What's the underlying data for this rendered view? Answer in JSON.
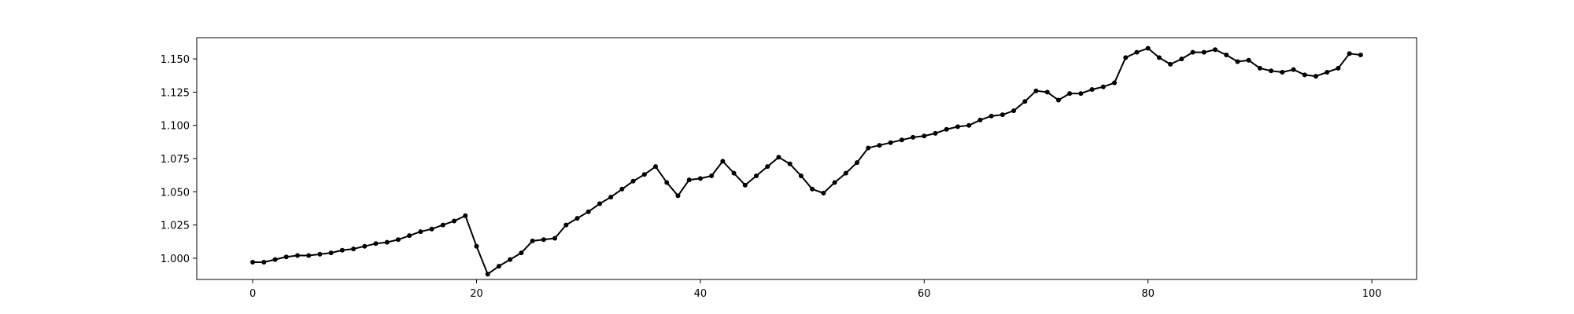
{
  "chart_data": {
    "type": "line",
    "title": "",
    "xlabel": "",
    "ylabel": "",
    "xlim": [
      -5,
      104
    ],
    "ylim": [
      0.984,
      1.166
    ],
    "grid": false,
    "legend": "none",
    "colors": {
      "line": "#000000",
      "marker": "#000000"
    },
    "x_ticks": [
      0,
      20,
      40,
      60,
      80,
      100
    ],
    "x_tick_labels": [
      "0",
      "20",
      "40",
      "60",
      "80",
      "100"
    ],
    "y_ticks": [
      1.0,
      1.025,
      1.05,
      1.075,
      1.1,
      1.125,
      1.15
    ],
    "y_tick_labels": [
      "1.000",
      "1.025",
      "1.050",
      "1.075",
      "1.100",
      "1.125",
      "1.150"
    ],
    "series": [
      {
        "x": [
          0,
          1,
          2,
          3,
          4,
          5,
          6,
          7,
          8,
          9,
          10,
          11,
          12,
          13,
          14,
          15,
          16,
          17,
          18,
          19,
          20,
          21,
          22,
          23,
          24,
          25,
          26,
          27,
          28,
          29,
          30,
          31,
          32,
          33,
          34,
          35,
          36,
          37,
          38,
          39,
          40,
          41,
          42,
          43,
          44,
          45,
          46,
          47,
          48,
          49,
          50,
          51,
          52,
          53,
          54,
          55,
          56,
          57,
          58,
          59,
          60,
          61,
          62,
          63,
          64,
          65,
          66,
          67,
          68,
          69,
          70,
          71,
          72,
          73,
          74,
          75,
          76,
          77,
          78,
          79,
          80,
          81,
          82,
          83,
          84,
          85,
          86,
          87,
          88,
          89,
          90,
          91,
          92,
          93,
          94,
          95,
          96,
          97,
          98,
          99
        ],
        "values": [
          0.997,
          0.997,
          0.999,
          1.001,
          1.002,
          1.002,
          1.003,
          1.004,
          1.006,
          1.007,
          1.009,
          1.011,
          1.012,
          1.014,
          1.017,
          1.02,
          1.022,
          1.025,
          1.028,
          1.032,
          1.009,
          0.988,
          0.994,
          0.999,
          1.004,
          1.013,
          1.014,
          1.015,
          1.025,
          1.03,
          1.035,
          1.041,
          1.046,
          1.052,
          1.058,
          1.063,
          1.069,
          1.057,
          1.047,
          1.059,
          1.06,
          1.062,
          1.073,
          1.064,
          1.055,
          1.062,
          1.069,
          1.076,
          1.071,
          1.062,
          1.052,
          1.049,
          1.057,
          1.064,
          1.072,
          1.083,
          1.085,
          1.087,
          1.089,
          1.091,
          1.092,
          1.094,
          1.097,
          1.099,
          1.1,
          1.104,
          1.107,
          1.108,
          1.111,
          1.118,
          1.126,
          1.125,
          1.119,
          1.124,
          1.124,
          1.127,
          1.129,
          1.132,
          1.151,
          1.155,
          1.158,
          1.151,
          1.146,
          1.15,
          1.155,
          1.155,
          1.157,
          1.153,
          1.148,
          1.149,
          1.143,
          1.141,
          1.14,
          1.142,
          1.138,
          1.137,
          1.14,
          1.143,
          1.154,
          1.153
        ]
      }
    ]
  }
}
